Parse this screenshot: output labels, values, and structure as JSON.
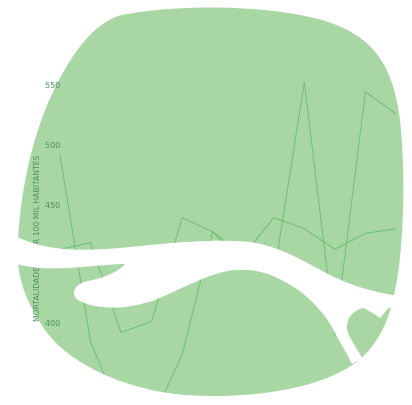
{
  "chart_data": {
    "type": "line",
    "title": "",
    "xlabel": "",
    "ylabel": "MORTALIDADE ... POR 100 MIL HABITANTES",
    "ylim": [
      370,
      600
    ],
    "yticks": [
      400,
      450,
      500,
      550
    ],
    "yticks_text": [
      "400",
      "450",
      "500",
      "550"
    ],
    "grid": false,
    "x": [
      1,
      2,
      3,
      4,
      5,
      6,
      7,
      8,
      9,
      10,
      11,
      12
    ],
    "series": [
      {
        "values": [
          547,
          428,
          382,
          378,
          420,
          498,
          478,
          470,
          593,
          432,
          587,
          573
        ]
      },
      {
        "values": [
          487,
          491,
          434,
          441,
          507,
          498,
          483,
          507,
          500,
          487,
          497,
          500
        ]
      }
    ]
  },
  "colors": {
    "background": "#ffffff",
    "blob_fill": "#a8d7a4",
    "line": "#6cbf79",
    "text": "#4e8f5c",
    "river": "#ffffff"
  }
}
